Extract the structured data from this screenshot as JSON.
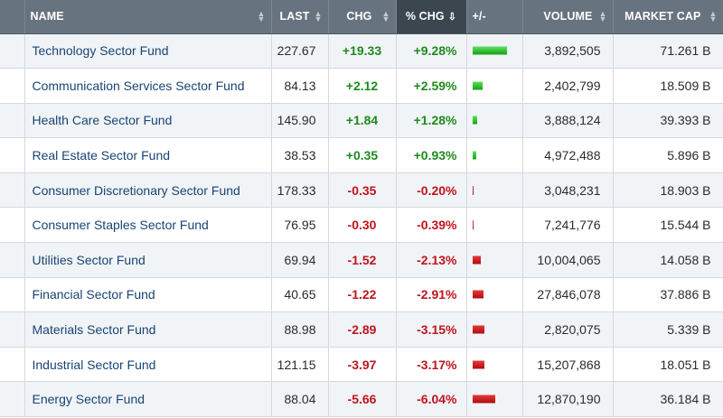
{
  "columns": {
    "name": "NAME",
    "last": "LAST",
    "chg": "CHG",
    "pct_chg": "% CHG",
    "bar": "+/-",
    "volume": "VOLUME",
    "market_cap": "MARKET CAP"
  },
  "sorted_column": "pct_chg",
  "colors": {
    "up": "#1f8a1f",
    "down": "#c0141c",
    "header_bg": "#67737e",
    "sorted_header_bg": "#3c464f"
  },
  "rows": [
    {
      "name": "Technology Sector Fund",
      "last": "227.67",
      "chg": "+19.33",
      "pct": "+9.28%",
      "pct_value": 9.28,
      "volume": "3,892,505",
      "market_cap": "71.261 B"
    },
    {
      "name": "Communication Services Sector Fund",
      "last": "84.13",
      "chg": "+2.12",
      "pct": "+2.59%",
      "pct_value": 2.59,
      "volume": "2,402,799",
      "market_cap": "18.509 B"
    },
    {
      "name": "Health Care Sector Fund",
      "last": "145.90",
      "chg": "+1.84",
      "pct": "+1.28%",
      "pct_value": 1.28,
      "volume": "3,888,124",
      "market_cap": "39.393 B"
    },
    {
      "name": "Real Estate Sector Fund",
      "last": "38.53",
      "chg": "+0.35",
      "pct": "+0.93%",
      "pct_value": 0.93,
      "volume": "4,972,488",
      "market_cap": "5.896 B"
    },
    {
      "name": "Consumer Discretionary Sector Fund",
      "last": "178.33",
      "chg": "-0.35",
      "pct": "-0.20%",
      "pct_value": -0.2,
      "volume": "3,048,231",
      "market_cap": "18.903 B"
    },
    {
      "name": "Consumer Staples Sector Fund",
      "last": "76.95",
      "chg": "-0.30",
      "pct": "-0.39%",
      "pct_value": -0.39,
      "volume": "7,241,776",
      "market_cap": "15.544 B"
    },
    {
      "name": "Utilities Sector Fund",
      "last": "69.94",
      "chg": "-1.52",
      "pct": "-2.13%",
      "pct_value": -2.13,
      "volume": "10,004,065",
      "market_cap": "14.058 B"
    },
    {
      "name": "Financial Sector Fund",
      "last": "40.65",
      "chg": "-1.22",
      "pct": "-2.91%",
      "pct_value": -2.91,
      "volume": "27,846,078",
      "market_cap": "37.886 B"
    },
    {
      "name": "Materials Sector Fund",
      "last": "88.98",
      "chg": "-2.89",
      "pct": "-3.15%",
      "pct_value": -3.15,
      "volume": "2,820,075",
      "market_cap": "5.339 B"
    },
    {
      "name": "Industrial Sector Fund",
      "last": "121.15",
      "chg": "-3.97",
      "pct": "-3.17%",
      "pct_value": -3.17,
      "volume": "15,207,868",
      "market_cap": "18.051 B"
    },
    {
      "name": "Energy Sector Fund",
      "last": "88.04",
      "chg": "-5.66",
      "pct": "-6.04%",
      "pct_value": -6.04,
      "volume": "12,870,190",
      "market_cap": "36.184 B"
    }
  ]
}
